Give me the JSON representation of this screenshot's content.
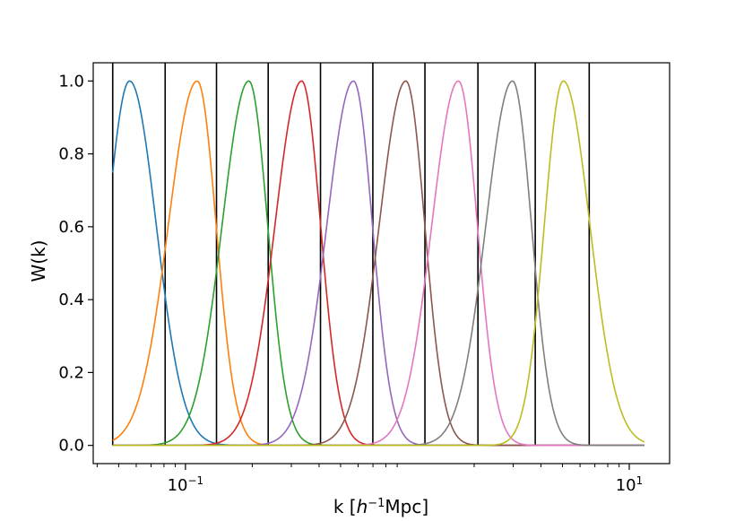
{
  "chart_data": {
    "type": "line",
    "title": "",
    "xlabel_prefix": "k [",
    "xlabel_h": "h",
    "xlabel_sup": "−1",
    "xlabel_suffix": "Mpc]",
    "ylabel": "W(k)",
    "xscale": "log",
    "xlim": [
      0.0384,
      15.2
    ],
    "ylim": [
      -0.05,
      1.05
    ],
    "x_major_ticks": [
      {
        "value": 0.1,
        "base": "10",
        "exp": "−1"
      },
      {
        "value": 10,
        "base": "10",
        "exp": "1"
      }
    ],
    "y_ticks": [
      {
        "value": 0.0,
        "label": "0.0"
      },
      {
        "value": 0.2,
        "label": "0.2"
      },
      {
        "value": 0.4,
        "label": "0.4"
      },
      {
        "value": 0.6,
        "label": "0.6"
      },
      {
        "value": 0.8,
        "label": "0.8"
      },
      {
        "value": 1.0,
        "label": "1.0"
      }
    ],
    "grid": false,
    "legend": "none",
    "k_range": [
      0.047,
      11.7
    ],
    "bin_edges": [
      0.047,
      0.081,
      0.138,
      0.236,
      0.406,
      0.699,
      1.2,
      2.08,
      3.77,
      6.6
    ],
    "series": [
      {
        "peak": 0.056,
        "width_left": 0.1,
        "width_right": 0.12,
        "color": "#1f77b4"
      },
      {
        "peak": 0.113,
        "width_left": 0.13,
        "width_right": 0.085,
        "color": "#ff7f0e"
      },
      {
        "peak": 0.193,
        "width_left": 0.12,
        "width_right": 0.085,
        "color": "#2ca02c"
      },
      {
        "peak": 0.334,
        "width_left": 0.12,
        "width_right": 0.085,
        "color": "#d62728"
      },
      {
        "peak": 0.572,
        "width_left": 0.12,
        "width_right": 0.085,
        "color": "#9467bd"
      },
      {
        "peak": 0.985,
        "width_left": 0.12,
        "width_right": 0.085,
        "color": "#8c564b"
      },
      {
        "peak": 1.7,
        "width_left": 0.12,
        "width_right": 0.085,
        "color": "#e377c2"
      },
      {
        "peak": 2.98,
        "width_left": 0.12,
        "width_right": 0.085,
        "color": "#7f7f7f"
      },
      {
        "peak": 5.04,
        "width_left": 0.085,
        "width_right": 0.12,
        "color": "#bcbd22"
      }
    ]
  }
}
